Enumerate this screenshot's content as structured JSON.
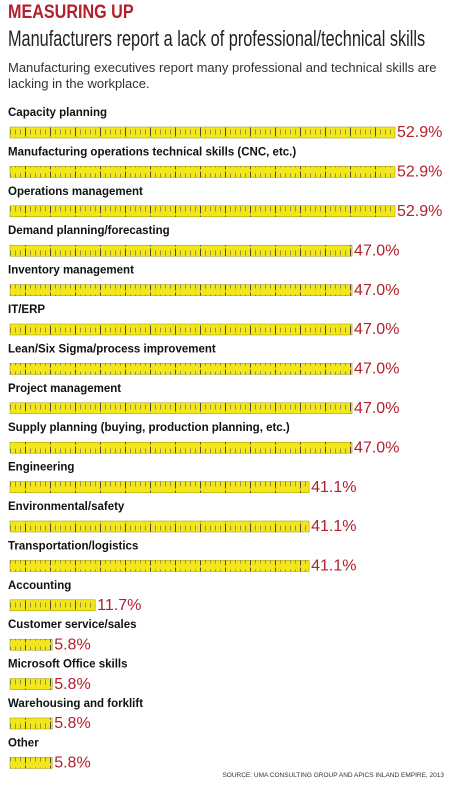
{
  "chart_data": {
    "type": "bar",
    "orientation": "horizontal",
    "title": "MEASURING UP",
    "subtitle": "Manufacturers report a lack of professional/technical skills",
    "description": "Manufacturing executives report many professional and technical skills are lacking in the workplace.",
    "source": "SOURCE: UMA CONSULTING GROUP AND APICS INLAND EMPIRE, 2013",
    "categories": [
      "Capacity planning",
      "Manufacturing operations technical skills (CNC, etc.)",
      "Operations management",
      "Demand planning/forecasting",
      "Inventory management",
      "IT/ERP",
      "Lean/Six Sigma/process improvement",
      "Project management",
      "Supply planning (buying, production planning, etc.)",
      "Engineering",
      "Environmental/safety",
      "Transportation/logistics",
      "Accounting",
      "Customer service/sales",
      "Microsoft Office skills",
      "Warehousing and forklift",
      "Other"
    ],
    "values": [
      52.9,
      52.9,
      52.9,
      47.0,
      47.0,
      47.0,
      47.0,
      47.0,
      47.0,
      41.1,
      41.1,
      41.1,
      11.7,
      5.8,
      5.8,
      5.8,
      5.8
    ],
    "value_labels": [
      "52.9%",
      "52.9%",
      "52.9%",
      "47.0%",
      "47.0%",
      "47.0%",
      "47.0%",
      "47.0%",
      "47.0%",
      "41.1%",
      "41.1%",
      "41.1%",
      "11.7%",
      "5.8%",
      "5.8%",
      "5.8%",
      "5.8%"
    ],
    "color": "#f3e71c",
    "label_color": "#b3202c"
  }
}
